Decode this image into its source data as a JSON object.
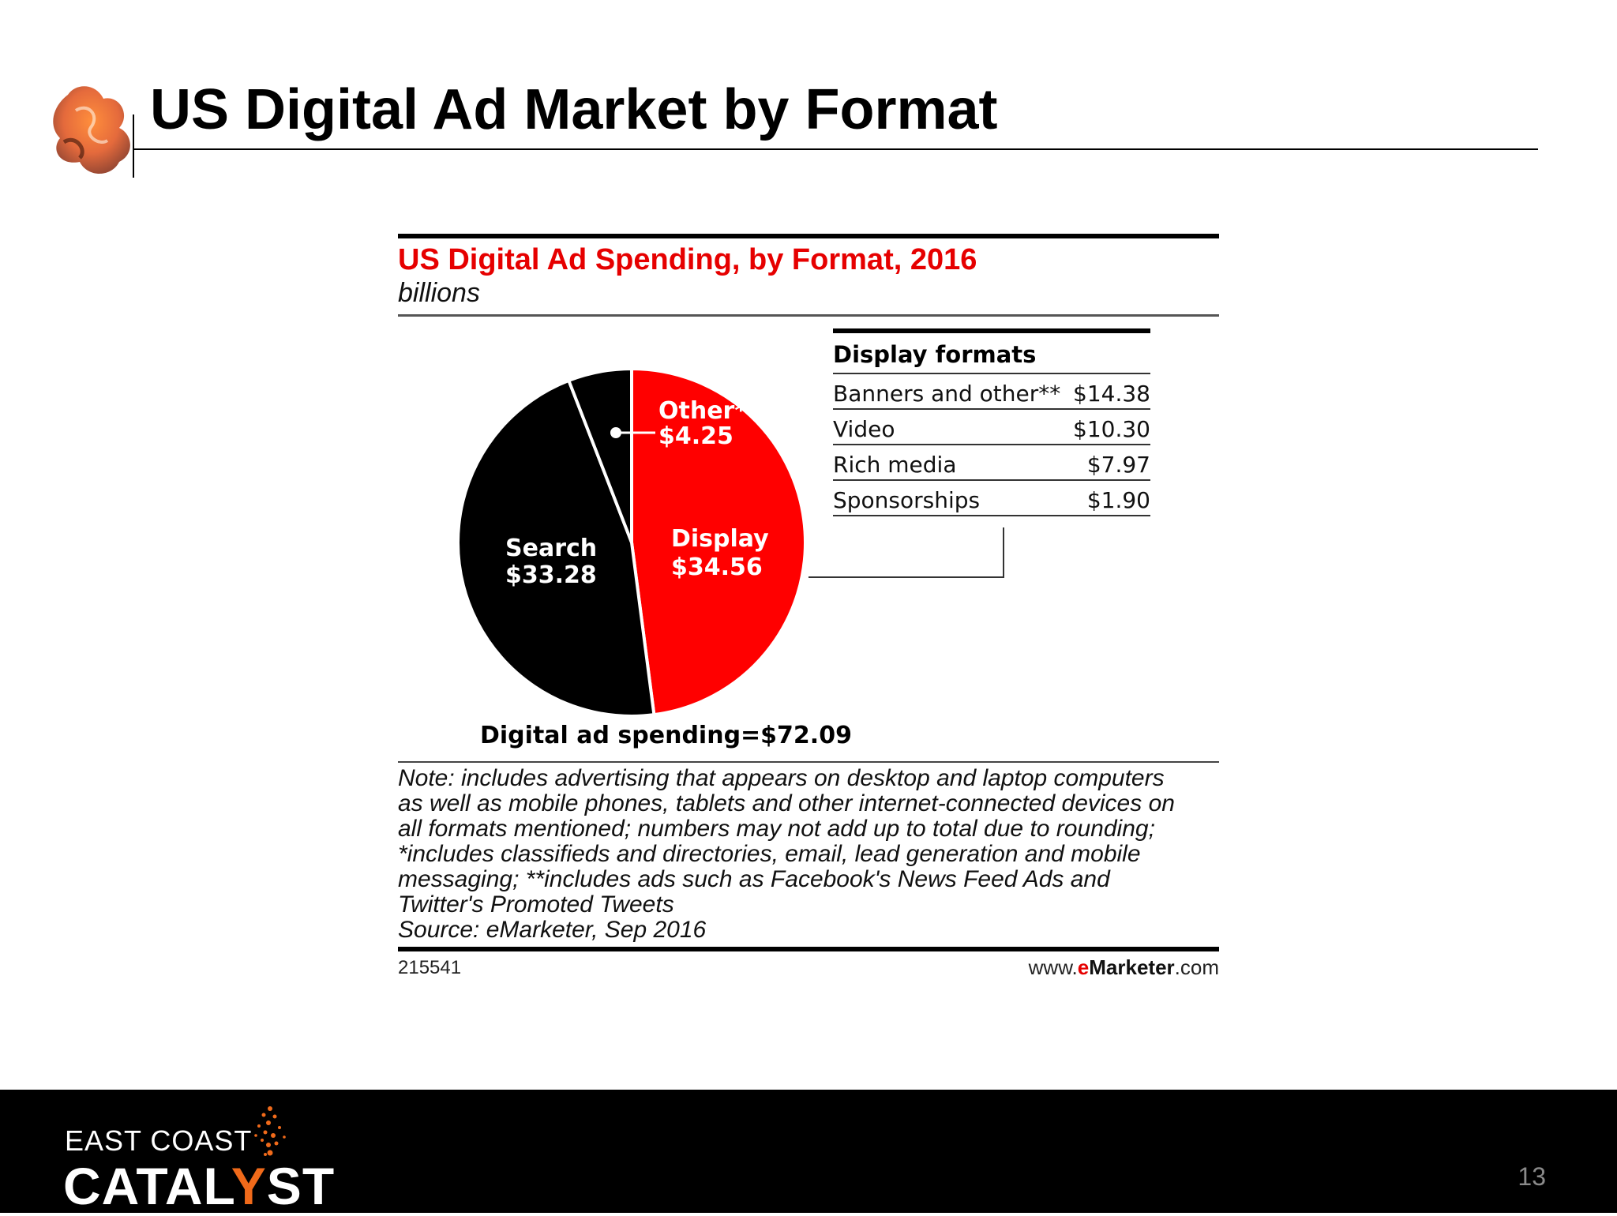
{
  "slide": {
    "title": "US Digital Ad Market by Format",
    "page_number": "13"
  },
  "footer": {
    "brand_line1": "EAST COAST",
    "brand_line2_a": "CATAL",
    "brand_line2_y": "Y",
    "brand_line2_b": "ST",
    "brand_accent": "#f06a1a"
  },
  "chart_data": {
    "type": "pie",
    "title": "US Digital Ad Spending, by Format, 2016",
    "subtitle": "billions",
    "slices": [
      {
        "label": "Display",
        "value_label": "$34.56",
        "value": 34.56,
        "color": "#ff0000"
      },
      {
        "label": "Search",
        "value_label": "$33.28",
        "value": 33.28,
        "color": "#000000"
      },
      {
        "label": "Other*",
        "value_label": "$4.25",
        "value": 4.25,
        "color": "#000000"
      }
    ],
    "total_label": "Digital ad spending=$72.09",
    "display_formats": {
      "header": "Display formats",
      "rows": [
        {
          "label": "Banners and other**",
          "value": "$14.38"
        },
        {
          "label": "Video",
          "value": "$10.30"
        },
        {
          "label": "Rich media",
          "value": "$7.97"
        },
        {
          "label": "Sponsorships",
          "value": "$1.90"
        }
      ]
    },
    "notes": [
      "Note: includes advertising that appears on desktop and laptop computers",
      "as well as mobile phones, tablets and other internet-connected devices on",
      "all formats mentioned; numbers may not add up to total due to rounding;",
      "*includes classifieds and directories, email, lead generation and mobile",
      "messaging; **includes ads such as Facebook's News Feed Ads and",
      "Twitter's Promoted Tweets",
      "Source: eMarketer, Sep 2016"
    ],
    "chart_id": "215541",
    "source_url": {
      "prefix": "www.",
      "e": "e",
      "brand": "Marketer",
      "suffix": ".com"
    }
  }
}
